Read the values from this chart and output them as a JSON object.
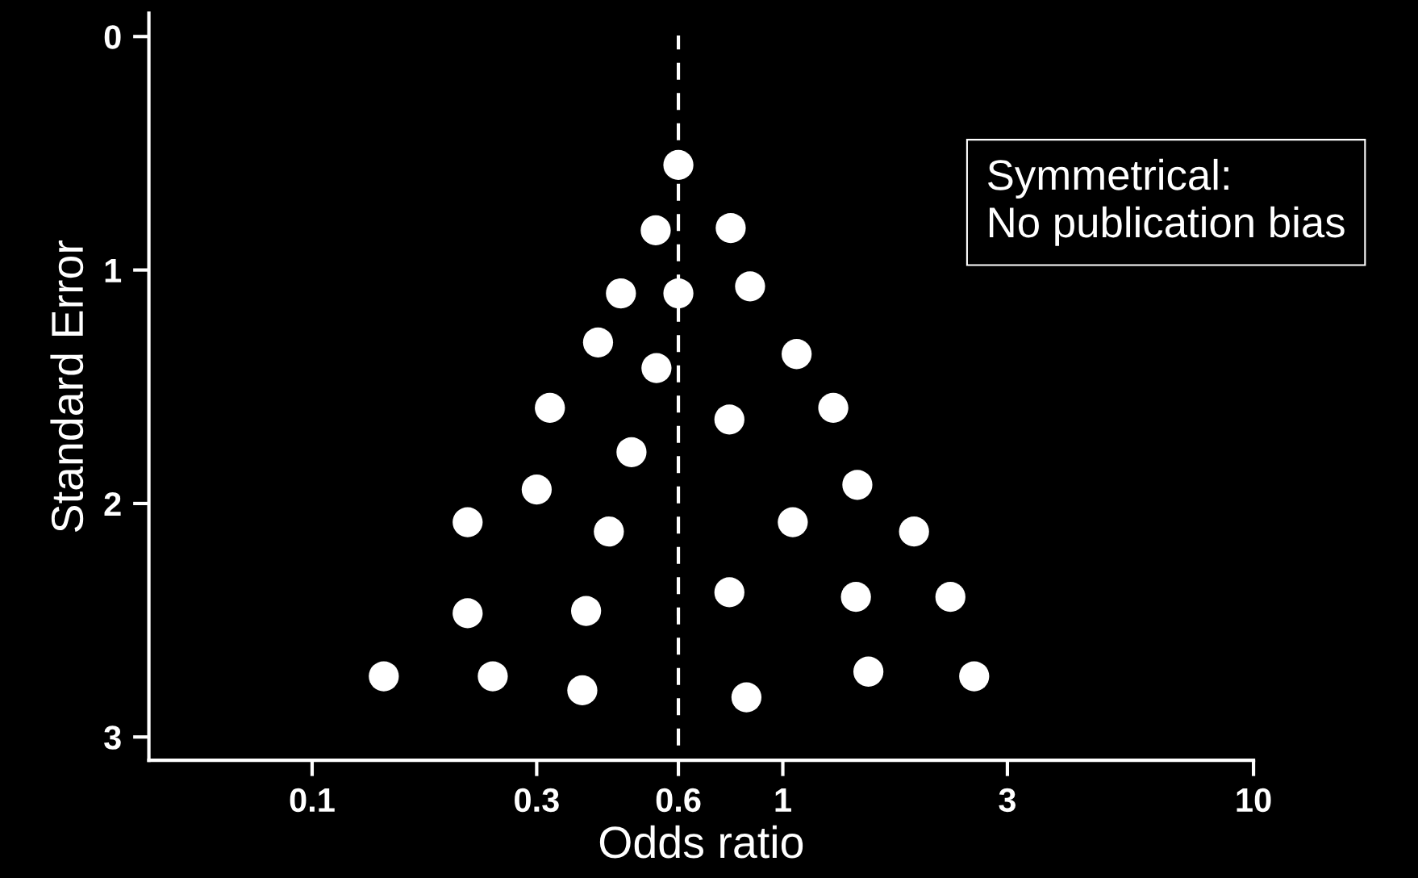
{
  "chart_data": {
    "type": "scatter",
    "xlabel": "Odds ratio",
    "ylabel": "Standard Error",
    "annotations": [
      "Symmetrical:\nNo publication bias"
    ],
    "log": "x",
    "xlim": [
      0.045,
      10
    ],
    "xticks": [
      0.1,
      0.3,
      0.6,
      1,
      3,
      10
    ],
    "ylim": [
      3.1,
      -0.1
    ],
    "yticks": [
      0,
      1,
      2,
      3
    ],
    "grid": false,
    "legend": false,
    "marker": "circle",
    "ref_lines": [
      {
        "axis": "x",
        "value": 0.6,
        "label": null,
        "color": "#ffffff",
        "line_style": "dashed"
      }
    ],
    "series": [
      {
        "color": "#ffffff",
        "x": [
          0.6,
          0.537,
          0.775,
          0.453,
          0.6,
          0.852,
          0.405,
          0.539,
          1.07,
          0.32,
          0.77,
          1.28,
          0.477,
          0.3,
          1.44,
          0.214,
          0.427,
          1.05,
          1.9,
          0.214,
          0.382,
          0.77,
          1.43,
          2.27,
          0.142,
          0.242,
          0.375,
          0.837,
          1.52,
          2.55
        ],
        "values": [
          0.55,
          0.83,
          0.82,
          1.1,
          1.1,
          1.07,
          1.31,
          1.42,
          1.36,
          1.59,
          1.64,
          1.59,
          1.78,
          1.94,
          1.92,
          2.08,
          2.12,
          2.08,
          2.12,
          2.47,
          2.46,
          2.38,
          2.4,
          2.4,
          2.74,
          2.74,
          2.8,
          2.83,
          2.72,
          2.74
        ]
      }
    ]
  }
}
